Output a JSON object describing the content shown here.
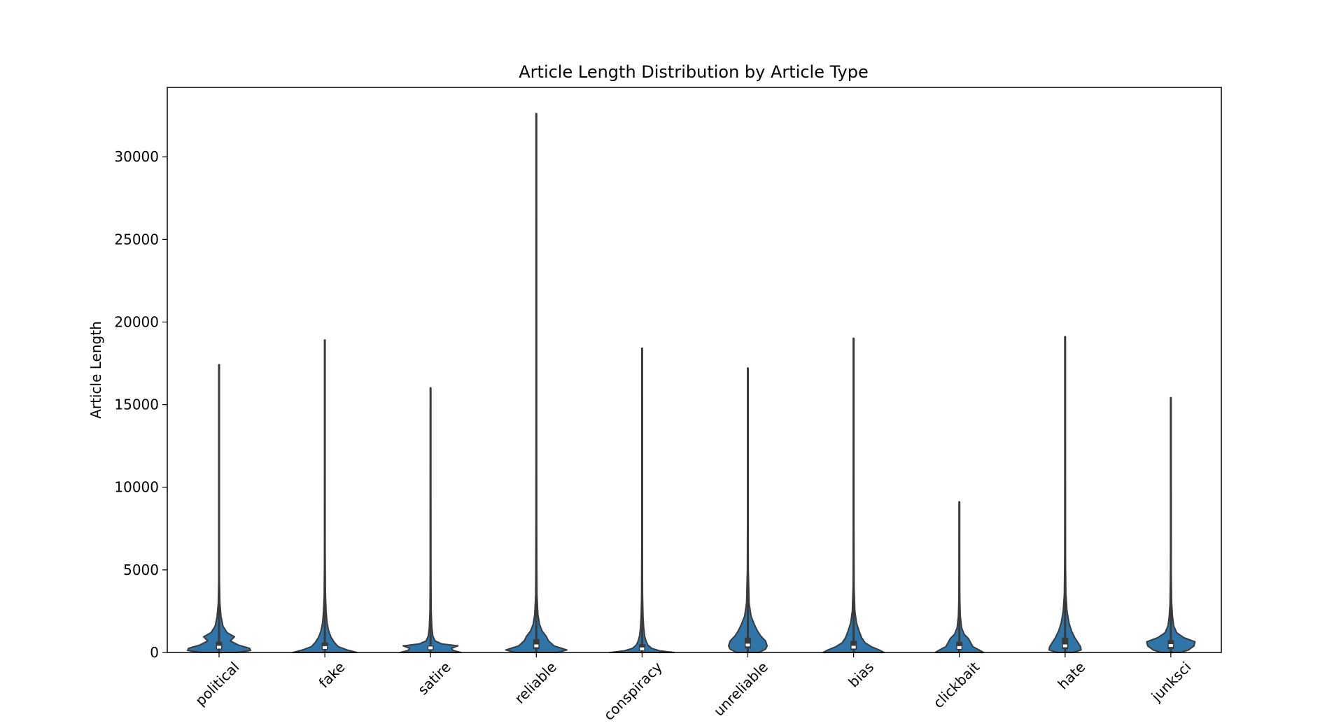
{
  "chart_data": {
    "type": "violin",
    "title": "Article Length Distribution by Article Type",
    "xlabel": "",
    "ylabel": "Article Length",
    "ylim": [
      0,
      34200
    ],
    "yticks": [
      0,
      5000,
      10000,
      15000,
      20000,
      25000,
      30000
    ],
    "ytick_labels": [
      "0",
      "5000",
      "10000",
      "15000",
      "20000",
      "25000",
      "30000"
    ],
    "grid": false,
    "legend": "none",
    "colors": {
      "violin_fill": "#2f75a8",
      "violin_edge": "#3a3a3a",
      "whisker": "#3a3a3a",
      "median": "#ffffff",
      "axis": "#000000"
    },
    "categories": [
      "political",
      "fake",
      "satire",
      "reliable",
      "conspiracy",
      "unreliable",
      "bias",
      "clickbait",
      "hate",
      "junksci"
    ],
    "series": [
      {
        "values": [
          {
            "category": "political",
            "min": 0,
            "q1": 180,
            "median": 320,
            "q3": 650,
            "max": 17400,
            "density_profile": [
              [
                0,
                0.55
              ],
              [
                120,
                0.98
              ],
              [
                250,
                0.95
              ],
              [
                450,
                0.6
              ],
              [
                700,
                0.35
              ],
              [
                950,
                0.48
              ],
              [
                1200,
                0.25
              ],
              [
                1600,
                0.12
              ],
              [
                2200,
                0.06
              ],
              [
                3000,
                0.025
              ],
              [
                4500,
                0.01
              ],
              [
                8000,
                0.006
              ],
              [
                17400,
                0.004
              ]
            ]
          },
          {
            "category": "fake",
            "min": 0,
            "q1": 150,
            "median": 300,
            "q3": 600,
            "max": 18900,
            "density_profile": [
              [
                0,
                1.0
              ],
              [
                150,
                0.7
              ],
              [
                350,
                0.42
              ],
              [
                600,
                0.3
              ],
              [
                900,
                0.2
              ],
              [
                1300,
                0.12
              ],
              [
                1800,
                0.07
              ],
              [
                2500,
                0.04
              ],
              [
                3500,
                0.02
              ],
              [
                6000,
                0.01
              ],
              [
                12000,
                0.006
              ],
              [
                18900,
                0.004
              ]
            ]
          },
          {
            "category": "satire",
            "min": 0,
            "q1": 130,
            "median": 280,
            "q3": 420,
            "max": 16000,
            "density_profile": [
              [
                0,
                0.95
              ],
              [
                120,
                0.7
              ],
              [
                250,
                0.65
              ],
              [
                400,
                0.85
              ],
              [
                520,
                0.35
              ],
              [
                700,
                0.14
              ],
              [
                1000,
                0.07
              ],
              [
                1500,
                0.04
              ],
              [
                2500,
                0.02
              ],
              [
                5000,
                0.01
              ],
              [
                10000,
                0.006
              ],
              [
                16000,
                0.004
              ]
            ]
          },
          {
            "category": "reliable",
            "min": 0,
            "q1": 200,
            "median": 400,
            "q3": 800,
            "max": 32600,
            "density_profile": [
              [
                0,
                0.65
              ],
              [
                150,
                0.95
              ],
              [
                400,
                0.55
              ],
              [
                700,
                0.38
              ],
              [
                1000,
                0.3
              ],
              [
                1300,
                0.18
              ],
              [
                1700,
                0.1
              ],
              [
                2300,
                0.05
              ],
              [
                3500,
                0.02
              ],
              [
                8000,
                0.008
              ],
              [
                20000,
                0.005
              ],
              [
                32600,
                0.004
              ]
            ]
          },
          {
            "category": "conspiracy",
            "min": 0,
            "q1": 100,
            "median": 220,
            "q3": 500,
            "max": 18400,
            "density_profile": [
              [
                0,
                1.0
              ],
              [
                100,
                0.55
              ],
              [
                250,
                0.3
              ],
              [
                450,
                0.18
              ],
              [
                700,
                0.12
              ],
              [
                1000,
                0.08
              ],
              [
                1500,
                0.05
              ],
              [
                2200,
                0.03
              ],
              [
                3500,
                0.015
              ],
              [
                7000,
                0.008
              ],
              [
                12000,
                0.006
              ],
              [
                18400,
                0.004
              ]
            ]
          },
          {
            "category": "unreliable",
            "min": 0,
            "q1": 250,
            "median": 450,
            "q3": 900,
            "max": 17200,
            "density_profile": [
              [
                0,
                0.35
              ],
              [
                200,
                0.55
              ],
              [
                400,
                0.6
              ],
              [
                700,
                0.55
              ],
              [
                1000,
                0.4
              ],
              [
                1300,
                0.3
              ],
              [
                1700,
                0.2
              ],
              [
                2200,
                0.1
              ],
              [
                3000,
                0.04
              ],
              [
                5000,
                0.015
              ],
              [
                10000,
                0.007
              ],
              [
                17200,
                0.004
              ]
            ]
          },
          {
            "category": "bias",
            "min": 0,
            "q1": 150,
            "median": 320,
            "q3": 700,
            "max": 19000,
            "density_profile": [
              [
                0,
                0.95
              ],
              [
                150,
                0.8
              ],
              [
                350,
                0.55
              ],
              [
                600,
                0.35
              ],
              [
                900,
                0.25
              ],
              [
                1300,
                0.17
              ],
              [
                1800,
                0.09
              ],
              [
                2500,
                0.04
              ],
              [
                4000,
                0.015
              ],
              [
                8000,
                0.008
              ],
              [
                14000,
                0.005
              ],
              [
                19000,
                0.004
              ]
            ]
          },
          {
            "category": "clickbait",
            "min": 0,
            "q1": 150,
            "median": 300,
            "q3": 650,
            "max": 9100,
            "density_profile": [
              [
                0,
                0.75
              ],
              [
                150,
                0.62
              ],
              [
                350,
                0.42
              ],
              [
                600,
                0.35
              ],
              [
                850,
                0.28
              ],
              [
                1100,
                0.15
              ],
              [
                1500,
                0.07
              ],
              [
                2200,
                0.03
              ],
              [
                3500,
                0.012
              ],
              [
                6000,
                0.007
              ],
              [
                9100,
                0.004
              ]
            ]
          },
          {
            "category": "hate",
            "min": 0,
            "q1": 200,
            "median": 400,
            "q3": 900,
            "max": 19100,
            "density_profile": [
              [
                0,
                0.25
              ],
              [
                150,
                0.5
              ],
              [
                350,
                0.48
              ],
              [
                600,
                0.4
              ],
              [
                900,
                0.3
              ],
              [
                1300,
                0.2
              ],
              [
                1800,
                0.12
              ],
              [
                2500,
                0.06
              ],
              [
                3500,
                0.025
              ],
              [
                6000,
                0.01
              ],
              [
                12000,
                0.006
              ],
              [
                19100,
                0.004
              ]
            ]
          },
          {
            "category": "junksci",
            "min": 0,
            "q1": 200,
            "median": 420,
            "q3": 750,
            "max": 15400,
            "density_profile": [
              [
                0,
                0.3
              ],
              [
                150,
                0.55
              ],
              [
                400,
                0.72
              ],
              [
                650,
                0.75
              ],
              [
                900,
                0.4
              ],
              [
                1200,
                0.18
              ],
              [
                1600,
                0.09
              ],
              [
                2200,
                0.05
              ],
              [
                3000,
                0.025
              ],
              [
                5000,
                0.01
              ],
              [
                10000,
                0.006
              ],
              [
                15400,
                0.004
              ]
            ]
          }
        ]
      }
    ]
  }
}
